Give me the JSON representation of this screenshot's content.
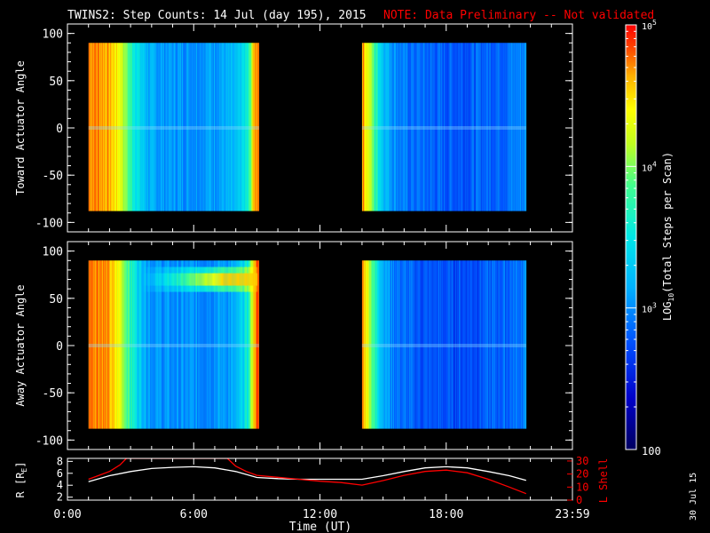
{
  "header": {
    "title": "TWINS2: Step Counts: 14 Jul (day 195), 2015",
    "note": "NOTE: Data Preliminary -- Not validated"
  },
  "side_date": "30 Jul 15",
  "colors": {
    "background": "#000000",
    "axes": "#ffffff",
    "note": "#ff0000",
    "r_line": "#ffffff",
    "lshell_line": "#ff0000"
  },
  "chart_data": [
    {
      "type": "heatmap",
      "title": "",
      "ylabel": "Toward Actuator Angle",
      "ylim": [
        -110,
        110
      ],
      "yticks": [
        100,
        50,
        0,
        -50,
        -100
      ],
      "xlim": [
        0,
        24
      ],
      "data_extent_y": [
        -88,
        90
      ],
      "segments": [
        {
          "t_start": 1.0,
          "t_end": 9.1
        },
        {
          "t_start": 14.0,
          "t_end": 21.8
        }
      ],
      "log10_profile": {
        "t": [
          1.0,
          1.6,
          2.0,
          2.5,
          3.0,
          3.5,
          4.0,
          5.0,
          6.0,
          7.0,
          8.0,
          8.6,
          8.9,
          9.1,
          14.0,
          14.3,
          14.6,
          15.0,
          15.5,
          16.0,
          17.0,
          18.0,
          19.0,
          20.0,
          21.0,
          21.8
        ],
        "v": [
          4.75,
          4.7,
          4.6,
          4.35,
          3.75,
          3.35,
          3.1,
          3.05,
          3.05,
          3.1,
          3.15,
          3.6,
          4.7,
          4.8,
          4.75,
          4.3,
          3.8,
          3.3,
          3.05,
          2.9,
          2.85,
          2.8,
          2.8,
          2.85,
          2.9,
          3.0
        ]
      },
      "band_at_deg": 0
    },
    {
      "type": "heatmap",
      "title": "",
      "ylabel": "Away Actuator Angle",
      "ylim": [
        -110,
        110
      ],
      "yticks": [
        100,
        50,
        0,
        -50,
        -100
      ],
      "xlim": [
        0,
        24
      ],
      "data_extent_y": [
        -88,
        90
      ],
      "segments": [
        {
          "t_start": 1.0,
          "t_end": 9.1
        },
        {
          "t_start": 14.0,
          "t_end": 21.8
        }
      ],
      "log10_profile": {
        "t": [
          1.0,
          1.6,
          2.0,
          2.5,
          3.0,
          3.5,
          4.0,
          5.0,
          6.0,
          7.0,
          8.0,
          8.6,
          8.9,
          9.1,
          14.0,
          14.3,
          14.6,
          15.0,
          15.5,
          16.0,
          17.0,
          18.0,
          19.0,
          20.0,
          21.0,
          21.8
        ],
        "v": [
          4.8,
          4.75,
          4.6,
          4.3,
          3.7,
          3.3,
          3.05,
          3.0,
          3.0,
          3.05,
          3.1,
          3.6,
          4.7,
          4.8,
          4.75,
          4.3,
          3.7,
          3.2,
          2.95,
          2.85,
          2.75,
          2.75,
          2.75,
          2.8,
          2.85,
          2.95
        ]
      },
      "enhancement": {
        "deg_center": 70,
        "t_start": 3.5,
        "t_end": 9.0,
        "peak_log10": 4.55
      },
      "band_at_deg": 0
    },
    {
      "type": "line",
      "title": "",
      "xlabel": "Time (UT)",
      "xlim": [
        0,
        24
      ],
      "xticks": [
        0,
        6,
        12,
        18,
        24
      ],
      "xtick_labels": [
        "0:00",
        "6:00",
        "12:00",
        "18:00",
        "23:59"
      ],
      "ylabel_left": "R [R",
      "ylabel_left_sub": "E",
      "ylabel_left_close": "]",
      "ylim_left": [
        1.5,
        8.5
      ],
      "yticks_left": [
        2,
        4,
        6,
        8
      ],
      "ylabel_right": "L Shell",
      "ylim_right": [
        0,
        32
      ],
      "yticks_right": [
        0,
        10,
        20,
        30
      ],
      "series": [
        {
          "axis": "left",
          "x": [
            1.0,
            2.0,
            3.0,
            4.0,
            5.0,
            6.0,
            7.0,
            8.0,
            9.0,
            10.0,
            11.0,
            12.0,
            13.0,
            14.0,
            15.0,
            16.0,
            17.0,
            18.0,
            19.0,
            20.0,
            21.0,
            21.8
          ],
          "y": [
            4.6,
            5.6,
            6.3,
            6.8,
            7.0,
            7.1,
            6.9,
            6.3,
            5.3,
            5.1,
            5.0,
            5.0,
            5.0,
            5.0,
            5.6,
            6.3,
            6.9,
            7.1,
            6.9,
            6.3,
            5.6,
            4.8
          ]
        },
        {
          "axis": "right",
          "x": [
            1.0,
            1.5,
            2.0,
            2.5,
            2.8,
            7.6,
            8.0,
            8.5,
            9.0,
            10.0,
            11.0,
            12.0,
            13.0,
            14.0,
            15.0,
            16.0,
            17.0,
            18.0,
            19.0,
            20.0,
            21.0,
            21.8
          ],
          "y": [
            16,
            19,
            22,
            27,
            32,
            32,
            26,
            22,
            19,
            17.5,
            16,
            14.5,
            13.5,
            11.5,
            15,
            19,
            22,
            23,
            21,
            16,
            10,
            5
          ]
        }
      ]
    },
    {
      "type": "heatmap",
      "title": "",
      "colorbar": true,
      "label_pre": "LOG",
      "label_sub": "10",
      "label_post": "(Total Steps per Scan)",
      "log_range": [
        2,
        5
      ],
      "tick_base": "10",
      "tick_exp_5": "5",
      "tick_exp_4": "4",
      "tick_exp_3": "3",
      "tick_label_2": "100"
    }
  ]
}
